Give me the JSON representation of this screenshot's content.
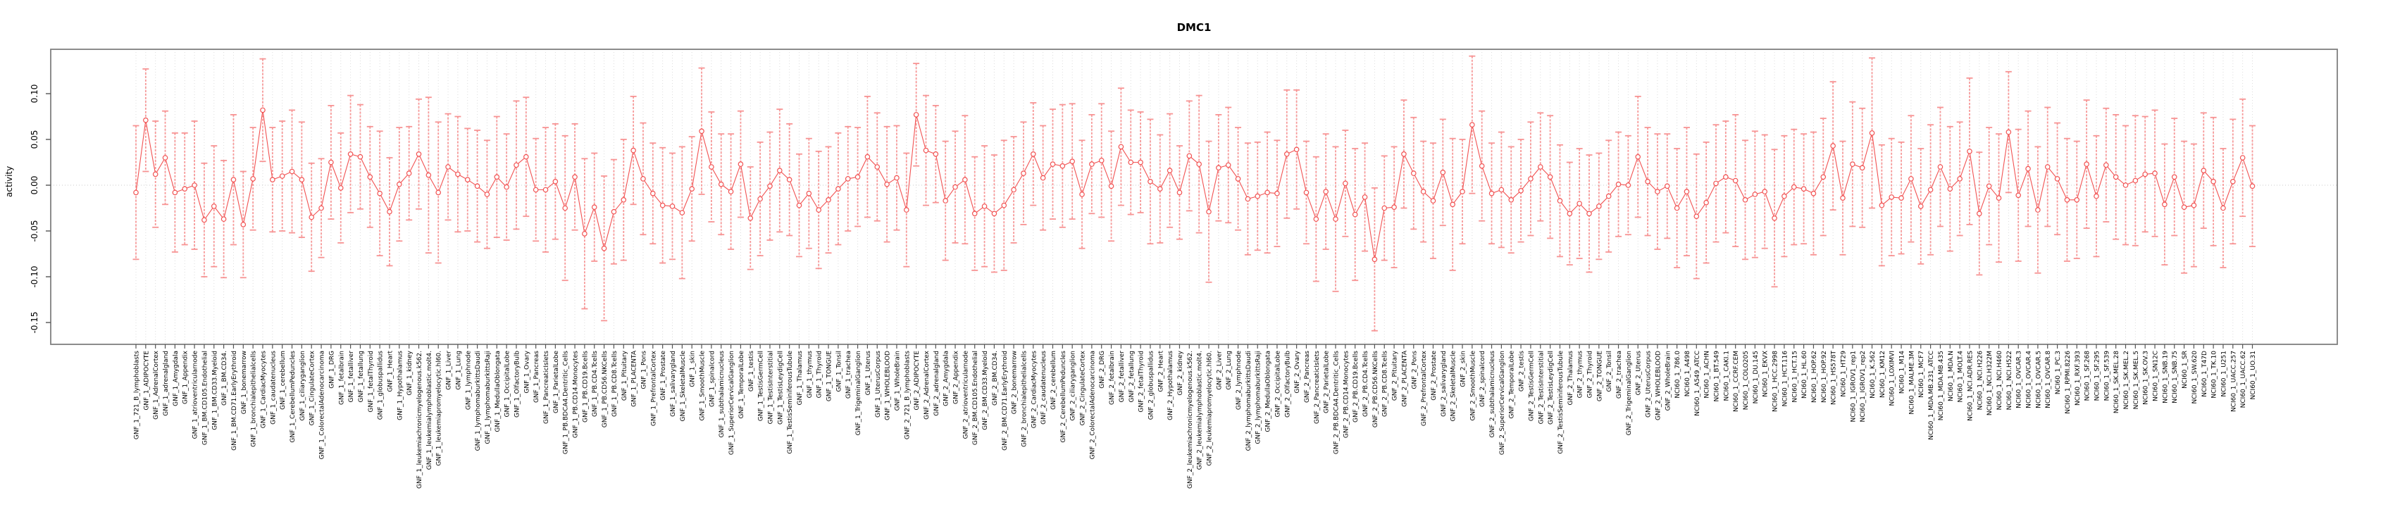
{
  "chart_data": {
    "type": "line",
    "title": "DMC1",
    "xlabel": "",
    "ylabel": "activity",
    "legend": "none",
    "grid": "vertical dotted per category + dotted zero line",
    "ylim": [
      -0.174,
      0.148
    ],
    "yticks": [
      -0.15,
      -0.1,
      -0.05,
      0.0,
      0.05,
      0.1
    ],
    "ytick_labels": [
      "-0.15",
      "-0.10",
      "-0.05",
      "0.00",
      "0.05",
      "0.10"
    ],
    "point_style": "open-circle with error bars",
    "colors": {
      "series": "#f25252",
      "errorbar": "#f78f8f",
      "grid": "#dcdcdc",
      "zero_line": "#c8c8c8",
      "box": "#808080",
      "title": "#000000"
    },
    "categories": [
      "GNF_1_721_B_lymphoblasts",
      "GNF_1_ADIPOCYTE",
      "GNF_1_AdrenalCortex",
      "GNF_1_adrenalgland",
      "GNF_1_Amygdala",
      "GNF_1_Appendix",
      "GNF_1_atrioventricularnode",
      "GNF_1_BM.CD105.Endothelial",
      "GNF_1_BM.CD33.Myeloid",
      "GNF_1_BM.CD34.",
      "GNF_1_BM.CD71.EarlyErythroid",
      "GNF_1_bonemarrow",
      "GNF_1_bronchialepithelialcells",
      "GNF_1_CardiacMyocytes",
      "GNF_1_caudatenucleus",
      "GNF_1_cerebellum",
      "GNF_1_CerebellumPeduncles",
      "GNF_1_ciliaryganglion",
      "GNF_1_CingulateCortex",
      "GNF_1_ColorectalAdenocarcinoma",
      "GNF_1_DRG",
      "GNF_1_fetalbrain",
      "GNF_1_fetalliver",
      "GNF_1_fetallung",
      "GNF_1_fetalThyroid",
      "GNF_1_globuspallidus",
      "GNF_1_Heart",
      "GNF_1_Hypothalamus",
      "GNF_1_kidney",
      "GNF_1_leukemiachronicmyelogenous.k562.",
      "GNF_1_leukemialymphoblastic.molt4.",
      "GNF_1_leukemiapromyelocytic.hl60.",
      "GNF_1_Liver",
      "GNF_1_Lung",
      "GNF_1_lymphnode",
      "GNF_1_lymphomaburkittsDaudi",
      "GNF_1_lymphomaburkittsRaji",
      "GNF_1_MedullaOblongata",
      "GNF_1_OccipitalLobe",
      "GNF_1_OlfactoryBulb",
      "GNF_1_Ovary",
      "GNF_1_Pancreas",
      "GNF_1_PancreaticIslets",
      "GNF_1_ParietalLobe",
      "GNF_1_PB.BDCA4.Dentritic_Cells",
      "GNF_1_PB.CD14.Monocytes",
      "GNF_1_PB.CD19.Bcells",
      "GNF_1_PB.CD4.Tcells",
      "GNF_1_PB.CD56.NKCells",
      "GNF_1_PB.CD8.Tcells",
      "GNF_1_Pituitary",
      "GNF_1_PLACENTA",
      "GNF_1_Pons",
      "GNF_1_PrefrontalCortex",
      "GNF_1_Prostate",
      "GNF_1_salivarygland",
      "GNF_1_SkeletalMuscle",
      "GNF_1_skin",
      "GNF_1_SmoothMuscle",
      "GNF_1_spinalcord",
      "GNF_1_subthalamicnucleus",
      "GNF_1_SuperiorCervicalGanglion",
      "GNF_1_TemporalLobe",
      "GNF_1_testis",
      "GNF_1_TestisGermCell",
      "GNF_1_TestisInterstitial",
      "GNF_1_TestisLeydigCell",
      "GNF_1_TestisSeminiferousTubule",
      "GNF_1_Thalamus",
      "GNF_1_thymus",
      "GNF_1_Thyroid",
      "GNF_1_TONGUE",
      "GNF_1_Tonsil",
      "GNF_1_trachea",
      "GNF_1_TrigeminalGanglion",
      "GNF_1_Uterus",
      "GNF_1_UterusCorpus",
      "GNF_1_WHOLEBLOOD",
      "GNF_1_WholeBrain",
      "GNF_2_721_B_lymphoblasts",
      "GNF_2_ADIPOCYTE",
      "GNF_2_AdrenalCortex",
      "GNF_2_adrenalgland",
      "GNF_2_Amygdala",
      "GNF_2_Appendix",
      "GNF_2_atrioventricularnode",
      "GNF_2_BM.CD105.Endothelial",
      "GNF_2_BM.CD33.Myeloid",
      "GNF_2_BM.CD34.",
      "GNF_2_BM.CD71.EarlyErythroid",
      "GNF_2_bonemarrow",
      "GNF_2_bronchialepithelialcells",
      "GNF_2_CardiacMyocytes",
      "GNF_2_caudatenucleus",
      "GNF_2_cerebellum",
      "GNF_2_CerebellumPeduncles",
      "GNF_2_ciliaryganglion",
      "GNF_2_CingulateCortex",
      "GNF_2_ColorectalAdenocarcinoma",
      "GNF_2_DRG",
      "GNF_2_fetalbrain",
      "GNF_2_fetalliver",
      "GNF_2_fetallung",
      "GNF_2_fetalThyroid",
      "GNF_2_globuspallidus",
      "GNF_2_Heart",
      "GNF_2_Hypothalamus",
      "GNF_2_kidney",
      "GNF_2_leukemiachronicmyelogenous.k562.",
      "GNF_2_leukemialymphoblastic.molt4.",
      "GNF_2_leukemiapromyelocytic.hl60.",
      "GNF_2_Liver",
      "GNF_2_Lung",
      "GNF_2_lymphnode",
      "GNF_2_lymphomaburkittsDaudi",
      "GNF_2_lymphomaburkittsRaji",
      "GNF_2_MedullaOblongata",
      "GNF_2_OccipitalLobe",
      "GNF_2_OlfactoryBulb",
      "GNF_2_Ovary",
      "GNF_2_Pancreas",
      "GNF_2_PancreaticIslets",
      "GNF_2_ParietalLobe",
      "GNF_2_PB.BDCA4.Dentritic_Cells",
      "GNF_2_PB.CD14.Monocytes",
      "GNF_2_PB.CD19.Bcells",
      "GNF_2_PB.CD4.Tcells",
      "GNF_2_PB.CD56.NKCells",
      "GNF_2_PB.CD8.Tcells",
      "GNF_2_Pituitary",
      "GNF_2_PLACENTA",
      "GNF_2_Pons",
      "GNF_2_PrefrontalCortex",
      "GNF_2_Prostate",
      "GNF_2_salivarygland",
      "GNF_2_SkeletalMuscle",
      "GNF_2_skin",
      "GNF_2_SmoothMuscle",
      "GNF_2_spinalcord",
      "GNF_2_subthalamicnucleus",
      "GNF_2_SuperiorCervicalGanglion",
      "GNF_2_TemporalLobe",
      "GNF_2_testis",
      "GNF_2_TestisGermCell",
      "GNF_2_TestisInterstitial",
      "GNF_2_TestisLeydigCell",
      "GNF_2_TestisSeminiferousTubule",
      "GNF_2_Thalamus",
      "GNF_2_thymus",
      "GNF_2_Thyroid",
      "GNF_2_TONGUE",
      "GNF_2_Tonsil",
      "GNF_2_trachea",
      "GNF_2_TrigeminalGanglion",
      "GNF_2_Uterus",
      "GNF_2_UterusCorpus",
      "GNF_2_WHOLEBLOOD",
      "GNF_2_WholeBrain",
      "NCI60_1_786.0",
      "NCI60_1_A498",
      "NCI60_1_A549_ATCC",
      "NCI60_1_ACHN",
      "NCI60_1_BT.549",
      "NCI60_1_CAKI.1",
      "NCI60_1_CCRF.CEM",
      "NCI60_1_COLO205",
      "NCI60_1_DU.145",
      "NCI60_1_EKVX",
      "NCI60_1_HCC.2998",
      "NCI60_1_HCT.116",
      "NCI60_1_HCT.15",
      "NCI60_1_HL.60",
      "NCI60_1_HOP.62",
      "NCI60_1_HOP.92",
      "NCI60_1_HS578T",
      "NCI60_1_HT29",
      "NCI60_1_IGROV1_rep1",
      "NCI60_1_IGROV1_rep2",
      "NCI60_1_K.562",
      "NCI60_1_KM12",
      "NCI60_1_LOXIMVI",
      "NCI60_1_M14",
      "NCI60_1_MALME.3M",
      "NCI60_1_MCF7",
      "NCI60_1_MDA.MB.231_ATCC",
      "NCI60_1_MDA.MB.435",
      "NCI60_1_MDA.N",
      "NCI60_1_MOLT.4",
      "NCI60_1_NCI.ADR.RES",
      "NCI60_1_NCI.H226",
      "NCI60_1_NCI.H322M",
      "NCI60_1_NCI.H460",
      "NCI60_1_NCI.H522",
      "NCI60_1_OVCAR.3",
      "NCI60_1_OVCAR.4",
      "NCI60_1_OVCAR.5",
      "NCI60_1_OVCAR.8",
      "NCI60_1_PC.3",
      "NCI60_1_RPMI.8226",
      "NCI60_1_RXF.393",
      "NCI60_1_SF.268",
      "NCI60_1_SF.295",
      "NCI60_1_SF.539",
      "NCI60_1_SK.MEL.28",
      "NCI60_1_SK.MEL.2",
      "NCI60_1_SK.MEL.5",
      "NCI60_1_SK.OV.3",
      "NCI60_1_SN12C",
      "NCI60_1_SNB.19",
      "NCI60_1_SNB.75",
      "NCI60_1_SR",
      "NCI60_1_SW.620",
      "NCI60_1_T47D",
      "NCI60_1_TK.10",
      "NCI60_1_U251",
      "NCI60_1_UACC.257",
      "NCI60_1_UACC.62",
      "NCI60_1_UO.31"
    ],
    "series": [
      {
        "name": "activity",
        "values": [
          -0.008,
          0.071,
          0.012,
          0.03,
          -0.008,
          -0.004,
          0.0,
          -0.038,
          -0.023,
          -0.037,
          0.006,
          -0.043,
          0.007,
          0.082,
          0.006,
          0.01,
          0.015,
          0.006,
          -0.035,
          -0.025,
          0.025,
          -0.003,
          0.034,
          0.031,
          0.009,
          -0.009,
          -0.029,
          0.001,
          0.013,
          0.034,
          0.011,
          -0.008,
          0.02,
          0.012,
          0.006,
          -0.001,
          -0.01,
          0.009,
          -0.002,
          0.022,
          0.031,
          -0.005,
          -0.005,
          0.004,
          -0.025,
          0.009,
          -0.053,
          -0.024,
          -0.069,
          -0.029,
          -0.016,
          0.038,
          0.007,
          -0.009,
          -0.022,
          -0.023,
          -0.03,
          -0.004,
          0.059,
          0.02,
          0.001,
          -0.007,
          0.023,
          -0.036,
          -0.015,
          -0.001,
          0.016,
          0.006,
          -0.022,
          -0.009,
          -0.027,
          -0.016,
          -0.004,
          0.007,
          0.009,
          0.031,
          0.02,
          0.001,
          0.008,
          -0.027,
          0.077,
          0.038,
          0.034,
          -0.017,
          -0.002,
          0.006,
          -0.031,
          -0.023,
          -0.031,
          -0.022,
          -0.005,
          0.013,
          0.034,
          0.008,
          0.023,
          0.021,
          0.026,
          -0.01,
          0.023,
          0.027,
          -0.001,
          0.042,
          0.025,
          0.025,
          0.004,
          -0.004,
          0.016,
          -0.008,
          0.032,
          0.023,
          -0.029,
          0.019,
          0.022,
          0.007,
          -0.015,
          -0.012,
          -0.008,
          -0.009,
          0.034,
          0.039,
          -0.008,
          -0.037,
          -0.007,
          -0.037,
          0.002,
          -0.032,
          -0.013,
          -0.081,
          -0.025,
          -0.024,
          0.034,
          0.013,
          -0.007,
          -0.017,
          0.014,
          -0.021,
          -0.007,
          0.066,
          0.021,
          -0.009,
          -0.005,
          -0.016,
          -0.006,
          0.007,
          0.02,
          0.009,
          -0.017,
          -0.031,
          -0.02,
          -0.031,
          -0.023,
          -0.012,
          0.001,
          0.0,
          0.031,
          0.004,
          -0.007,
          -0.001,
          -0.025,
          -0.007,
          -0.034,
          -0.019,
          0.002,
          0.009,
          0.005,
          -0.016,
          -0.01,
          -0.007,
          -0.036,
          -0.012,
          -0.002,
          -0.004,
          -0.009,
          0.009,
          0.043,
          -0.014,
          0.023,
          0.019,
          0.057,
          -0.022,
          -0.013,
          -0.014,
          0.007,
          -0.023,
          -0.005,
          0.02,
          -0.004,
          0.007,
          0.037,
          -0.031,
          -0.001,
          -0.014,
          0.058,
          -0.011,
          0.018,
          -0.027,
          0.02,
          0.007,
          -0.016,
          -0.016,
          0.023,
          -0.012,
          0.022,
          0.009,
          0.0,
          0.005,
          0.012,
          0.013,
          -0.021,
          0.009,
          -0.024,
          -0.022,
          0.016,
          0.004,
          -0.025,
          0.004,
          0.03,
          -0.001
        ],
        "errors": [
          0.073,
          0.056,
          0.058,
          0.051,
          0.065,
          0.061,
          0.07,
          0.062,
          0.066,
          0.064,
          0.071,
          0.058,
          0.056,
          0.056,
          0.057,
          0.06,
          0.067,
          0.063,
          0.059,
          0.054,
          0.062,
          0.06,
          0.064,
          0.057,
          0.055,
          0.068,
          0.059,
          0.062,
          0.051,
          0.06,
          0.085,
          0.077,
          0.058,
          0.063,
          0.056,
          0.061,
          0.059,
          0.066,
          0.058,
          0.07,
          0.065,
          0.056,
          0.068,
          0.063,
          0.079,
          0.058,
          0.082,
          0.059,
          0.079,
          0.057,
          0.066,
          0.059,
          0.061,
          0.055,
          0.063,
          0.058,
          0.072,
          0.057,
          0.069,
          0.06,
          0.055,
          0.063,
          0.058,
          0.056,
          0.062,
          0.059,
          0.067,
          0.061,
          0.056,
          0.06,
          0.064,
          0.058,
          0.061,
          0.057,
          0.054,
          0.066,
          0.059,
          0.063,
          0.057,
          0.062,
          0.056,
          0.06,
          0.053,
          0.065,
          0.061,
          0.07,
          0.062,
          0.066,
          0.064,
          0.071,
          0.058,
          0.056,
          0.056,
          0.057,
          0.06,
          0.067,
          0.063,
          0.059,
          0.054,
          0.062,
          0.06,
          0.064,
          0.057,
          0.055,
          0.068,
          0.059,
          0.062,
          0.051,
          0.06,
          0.075,
          0.077,
          0.058,
          0.063,
          0.056,
          0.061,
          0.059,
          0.066,
          0.058,
          0.07,
          0.065,
          0.056,
          0.068,
          0.063,
          0.079,
          0.058,
          0.072,
          0.059,
          0.078,
          0.057,
          0.066,
          0.059,
          0.061,
          0.055,
          0.063,
          0.058,
          0.072,
          0.057,
          0.075,
          0.06,
          0.055,
          0.063,
          0.058,
          0.056,
          0.062,
          0.059,
          0.067,
          0.061,
          0.056,
          0.06,
          0.064,
          0.058,
          0.061,
          0.057,
          0.054,
          0.066,
          0.059,
          0.063,
          0.057,
          0.065,
          0.07,
          0.068,
          0.066,
          0.064,
          0.061,
          0.072,
          0.065,
          0.069,
          0.062,
          0.075,
          0.066,
          0.063,
          0.06,
          0.067,
          0.064,
          0.07,
          0.062,
          0.068,
          0.065,
          0.082,
          0.066,
          0.064,
          0.061,
          0.069,
          0.063,
          0.071,
          0.065,
          0.068,
          0.062,
          0.08,
          0.067,
          0.064,
          0.07,
          0.066,
          0.072,
          0.063,
          0.069,
          0.065,
          0.061,
          0.067,
          0.064,
          0.07,
          0.066,
          0.062,
          0.068,
          0.065,
          0.071,
          0.063,
          0.069,
          0.066,
          0.064,
          0.072,
          0.067,
          0.063,
          0.07,
          0.065,
          0.068,
          0.064,
          0.066
        ]
      }
    ]
  }
}
